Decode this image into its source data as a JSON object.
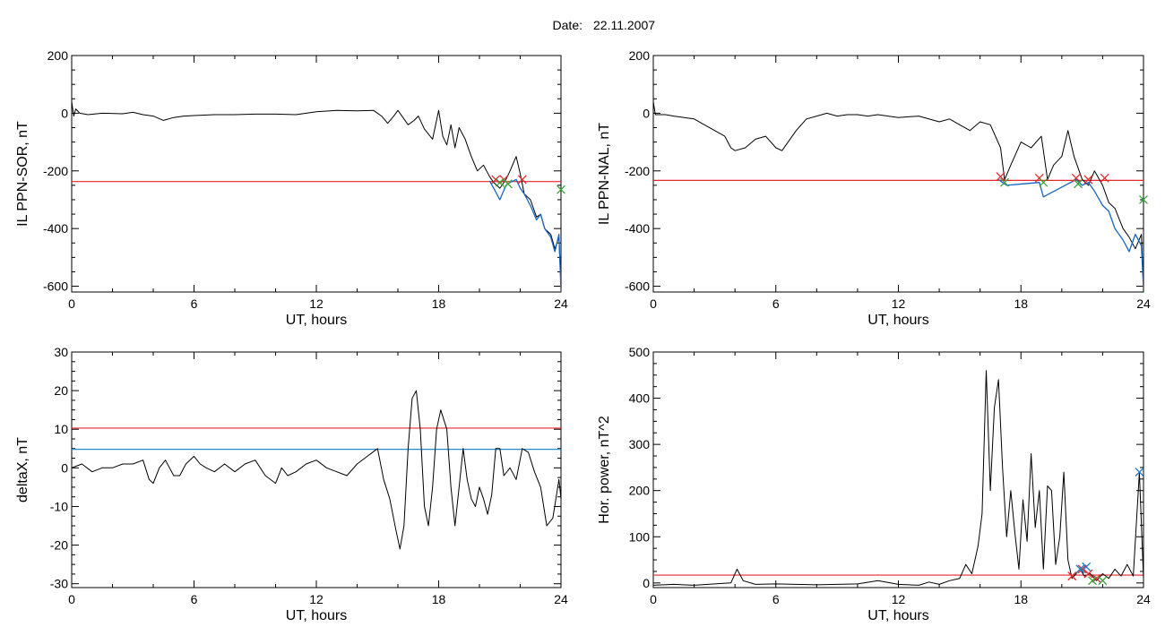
{
  "header": {
    "date_label": "Date:",
    "date_value": "22.11.2007"
  },
  "colors": {
    "trace": "#000000",
    "threshold_red": "#e8262b",
    "threshold_blue": "#1f8fd0",
    "marker_red": "#e8262b",
    "marker_green": "#3ba53b",
    "marker_blue": "#1f78c8",
    "segment_blue": "#1565c0"
  },
  "chart_data": [
    {
      "type": "line",
      "xlabel": "UT, hours",
      "ylabel": "IL PPN-SOR, nT",
      "xlim": [
        0,
        24
      ],
      "ylim": [
        -620,
        200
      ],
      "xticks": [
        0,
        6,
        12,
        18,
        24
      ],
      "yticks": [
        -600,
        -400,
        -200,
        0,
        200
      ],
      "thresholds": [
        {
          "value": -237,
          "color": "red"
        }
      ],
      "series": [
        {
          "x": [
            0,
            0.1,
            0.2,
            0.4,
            0.8,
            1.5,
            2.5,
            3.0,
            3.5,
            4.0,
            4.5,
            5.0,
            5.5,
            6.0,
            7.0,
            8.0,
            9.0,
            10.0,
            11.0,
            12.0,
            13.0,
            14.0,
            14.8,
            15.2,
            15.5,
            15.8,
            16.0,
            16.2,
            16.5,
            16.8,
            17.0,
            17.3,
            17.7,
            18.0,
            18.2,
            18.4,
            18.6,
            18.8,
            19.0,
            19.3,
            19.6,
            19.9,
            20.2,
            20.5,
            20.7,
            21.0,
            21.3,
            21.5,
            21.8,
            22.0,
            22.2,
            22.5,
            22.8,
            23.0,
            23.2,
            23.5,
            23.7,
            23.9,
            24
          ],
          "y": [
            40,
            -10,
            15,
            0,
            -5,
            0,
            -2,
            3,
            -5,
            -10,
            -25,
            -15,
            -10,
            -8,
            -5,
            -5,
            -3,
            -3,
            -5,
            5,
            10,
            8,
            10,
            -10,
            -35,
            -10,
            10,
            -10,
            -40,
            -25,
            -10,
            -55,
            -90,
            10,
            -80,
            -110,
            -40,
            -120,
            -50,
            -90,
            -150,
            -200,
            -180,
            -220,
            -240,
            -260,
            -230,
            -200,
            -150,
            -210,
            -280,
            -300,
            -360,
            -350,
            -400,
            -420,
            -470,
            -430,
            -600
          ]
        },
        {
          "x": [
            20.5,
            20.7,
            21.0,
            21.3,
            21.5,
            21.8,
            22.0,
            22.2,
            22.5,
            22.8,
            23.0,
            23.2,
            23.5,
            23.7,
            23.9,
            24
          ],
          "y": [
            -235,
            -260,
            -300,
            -250,
            -240,
            -230,
            -260,
            -280,
            -320,
            -370,
            -350,
            -400,
            -430,
            -480,
            -420,
            -620
          ],
          "role": "segment"
        }
      ],
      "markers": [
        {
          "x": 20.8,
          "y": -230,
          "color": "red"
        },
        {
          "x": 21.2,
          "y": -230,
          "color": "red"
        },
        {
          "x": 22.1,
          "y": -230,
          "color": "red"
        },
        {
          "x": 21.0,
          "y": -240,
          "color": "green"
        },
        {
          "x": 21.4,
          "y": -245,
          "color": "green"
        },
        {
          "x": 24,
          "y": -265,
          "color": "green"
        }
      ]
    },
    {
      "type": "line",
      "xlabel": "UT, hours",
      "ylabel": "IL PPN-NAL, nT",
      "xlim": [
        0,
        24
      ],
      "ylim": [
        -620,
        200
      ],
      "xticks": [
        0,
        6,
        12,
        18,
        24
      ],
      "yticks": [
        -600,
        -400,
        -200,
        0,
        200
      ],
      "thresholds": [
        {
          "value": -233,
          "color": "red"
        }
      ],
      "series": [
        {
          "x": [
            0,
            0.1,
            0.3,
            0.6,
            1.0,
            1.5,
            2.0,
            2.5,
            3.0,
            3.5,
            3.8,
            4.0,
            4.5,
            5.0,
            5.5,
            6.0,
            6.3,
            6.6,
            7.0,
            7.5,
            8.0,
            8.5,
            9.0,
            9.5,
            10.0,
            10.5,
            11.0,
            12.0,
            13.0,
            14.0,
            14.5,
            15.0,
            15.5,
            16.0,
            16.5,
            17.0,
            17.2,
            17.5,
            18.0,
            18.5,
            19.0,
            19.3,
            19.6,
            20.0,
            20.3,
            20.6,
            21.0,
            21.3,
            21.6,
            22.0,
            22.3,
            22.6,
            23.0,
            23.3,
            23.6,
            23.9,
            24
          ],
          "y": [
            40,
            -5,
            -5,
            -5,
            -10,
            -15,
            -20,
            -40,
            -60,
            -80,
            -120,
            -130,
            -120,
            -90,
            -80,
            -120,
            -130,
            -100,
            -60,
            -20,
            -10,
            0,
            -10,
            -5,
            -5,
            -10,
            -5,
            -15,
            -10,
            -30,
            -20,
            -40,
            -60,
            -30,
            -40,
            -120,
            -230,
            -180,
            -100,
            -120,
            -80,
            -230,
            -180,
            -150,
            -60,
            -150,
            -230,
            -250,
            -200,
            -250,
            -310,
            -330,
            -400,
            -430,
            -470,
            -420,
            -610
          ]
        },
        {
          "x": [
            16.9,
            17.1,
            17.3,
            18.9,
            19.1,
            20.7,
            21.0,
            21.3,
            21.6,
            22.0,
            22.3,
            22.6,
            23.0,
            23.3,
            23.6,
            23.9,
            24
          ],
          "y": [
            -230,
            -240,
            -250,
            -240,
            -290,
            -230,
            -250,
            -240,
            -270,
            -320,
            -340,
            -400,
            -440,
            -480,
            -420,
            -460,
            -610
          ],
          "role": "segment"
        }
      ],
      "markers": [
        {
          "x": 17.0,
          "y": -220,
          "color": "red"
        },
        {
          "x": 18.9,
          "y": -225,
          "color": "red"
        },
        {
          "x": 20.7,
          "y": -225,
          "color": "red"
        },
        {
          "x": 21.3,
          "y": -230,
          "color": "red"
        },
        {
          "x": 22.1,
          "y": -225,
          "color": "red"
        },
        {
          "x": 17.2,
          "y": -240,
          "color": "green"
        },
        {
          "x": 19.1,
          "y": -240,
          "color": "green"
        },
        {
          "x": 20.8,
          "y": -245,
          "color": "green"
        },
        {
          "x": 24,
          "y": -300,
          "color": "green"
        }
      ]
    },
    {
      "type": "line",
      "xlabel": "UT, hours",
      "ylabel": "deltaX, nT",
      "xlim": [
        0,
        24
      ],
      "ylim": [
        -31,
        30
      ],
      "xticks": [
        0,
        6,
        12,
        18,
        24
      ],
      "yticks": [
        -30,
        -20,
        -10,
        0,
        10,
        20,
        30
      ],
      "thresholds": [
        {
          "value": 10.3,
          "color": "red"
        },
        {
          "value": 4.8,
          "color": "blue"
        }
      ],
      "series": [
        {
          "x": [
            0,
            0.5,
            1.0,
            1.5,
            2.0,
            2.5,
            3.0,
            3.5,
            3.8,
            4.0,
            4.3,
            4.6,
            5.0,
            5.3,
            5.6,
            6.0,
            6.3,
            6.6,
            7.0,
            7.5,
            8.0,
            8.5,
            9.0,
            9.5,
            10.0,
            10.3,
            10.6,
            11.0,
            11.5,
            12.0,
            12.5,
            13.0,
            13.5,
            14.0,
            14.5,
            15.0,
            15.3,
            15.6,
            15.9,
            16.1,
            16.3,
            16.5,
            16.7,
            16.9,
            17.1,
            17.3,
            17.5,
            17.7,
            17.9,
            18.1,
            18.4,
            18.6,
            18.8,
            19.0,
            19.2,
            19.4,
            19.6,
            19.8,
            20.0,
            20.2,
            20.4,
            20.6,
            20.8,
            21.0,
            21.2,
            21.5,
            21.8,
            22.1,
            22.4,
            22.7,
            23.0,
            23.3,
            23.6,
            23.9,
            24
          ],
          "y": [
            0,
            1,
            -1,
            0,
            0,
            1,
            1,
            2,
            -3,
            -4,
            0,
            2,
            -2,
            -2,
            1,
            3,
            1,
            0,
            -1,
            1,
            -1,
            1,
            2,
            -2,
            -4,
            0,
            -2,
            -1,
            1,
            2,
            0,
            -1,
            -2,
            1,
            3,
            5,
            -3,
            -8,
            -16,
            -21,
            -15,
            5,
            18,
            20,
            10,
            -10,
            -15,
            -5,
            10,
            15,
            10,
            -5,
            -15,
            -5,
            5,
            -3,
            -8,
            -10,
            -5,
            -8,
            -12,
            -7,
            5,
            5,
            -2,
            0,
            -3,
            5,
            4,
            -1,
            -5,
            -15,
            -13,
            -3,
            -8
          ]
        }
      ],
      "markers": []
    },
    {
      "type": "line",
      "xlabel": "UT, hours",
      "ylabel": "Hor. power, nT^2",
      "xlim": [
        0,
        24
      ],
      "ylim": [
        -10,
        500
      ],
      "xticks": [
        0,
        6,
        12,
        18,
        24
      ],
      "yticks": [
        0,
        100,
        200,
        300,
        400,
        500
      ],
      "thresholds": [
        {
          "value": 17,
          "color": "red"
        }
      ],
      "series": [
        {
          "x": [
            0,
            1,
            2,
            3,
            3.8,
            4.1,
            4.4,
            5,
            6,
            7,
            8,
            9,
            10,
            11,
            12,
            13,
            13.5,
            14,
            14.5,
            15,
            15.3,
            15.6,
            15.9,
            16.1,
            16.3,
            16.5,
            16.7,
            16.9,
            17.1,
            17.3,
            17.5,
            17.7,
            17.9,
            18.1,
            18.3,
            18.5,
            18.7,
            18.9,
            19.1,
            19.3,
            19.5,
            19.7,
            19.9,
            20.1,
            20.3,
            20.5,
            20.7,
            20.9,
            21.1,
            21.4,
            21.7,
            22.0,
            22.3,
            22.6,
            22.9,
            23.2,
            23.5,
            23.8,
            24
          ],
          "y": [
            -5,
            -3,
            -5,
            -2,
            0,
            30,
            5,
            -3,
            -2,
            -3,
            -4,
            -3,
            -2,
            5,
            -3,
            -5,
            2,
            -3,
            5,
            10,
            40,
            20,
            80,
            150,
            460,
            200,
            380,
            440,
            250,
            100,
            200,
            110,
            30,
            180,
            90,
            280,
            120,
            200,
            30,
            210,
            200,
            40,
            100,
            240,
            50,
            10,
            20,
            30,
            15,
            20,
            5,
            20,
            10,
            30,
            15,
            40,
            15,
            240,
            10
          ]
        }
      ],
      "markers": [
        {
          "x": 20.5,
          "y": 15,
          "color": "red"
        },
        {
          "x": 21.0,
          "y": 30,
          "color": "red"
        },
        {
          "x": 21.3,
          "y": 20,
          "color": "red"
        },
        {
          "x": 21.7,
          "y": 10,
          "color": "red"
        },
        {
          "x": 20.9,
          "y": 30,
          "color": "blue"
        },
        {
          "x": 21.2,
          "y": 35,
          "color": "blue"
        },
        {
          "x": 23.8,
          "y": 240,
          "color": "blue"
        },
        {
          "x": 21.5,
          "y": 5,
          "color": "green"
        },
        {
          "x": 22.0,
          "y": 5,
          "color": "green"
        }
      ]
    }
  ]
}
